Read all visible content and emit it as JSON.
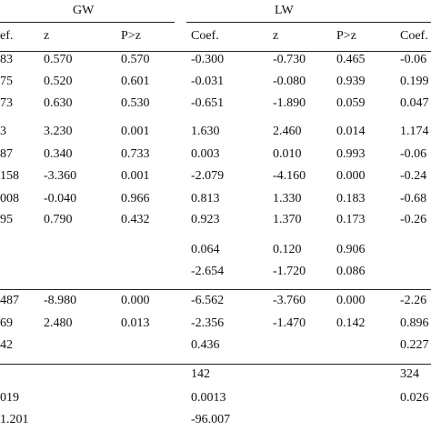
{
  "table": {
    "groups": [
      "GW",
      "LW"
    ],
    "header": [
      "ef.",
      "z",
      "P>z",
      "Coef.",
      "z",
      "P>z",
      "Coef."
    ],
    "rows": [
      [
        "83",
        "0.570",
        "0.570",
        "-0.300",
        "-0.730",
        "0.465",
        "-0.06"
      ],
      [
        "75",
        "0.520",
        "0.601",
        "-0.031",
        "-0.080",
        "0.939",
        "0.199"
      ],
      [
        "73",
        "0.630",
        "0.530",
        "-0.651",
        "-1.890",
        "0.059",
        "0.047"
      ],
      [
        "3",
        "3.230",
        "0.001",
        "1.630",
        "2.460",
        "0.014",
        "1.174"
      ],
      [
        "87",
        "0.340",
        "0.733",
        "0.003",
        "0.010",
        "0.993",
        "-0.06"
      ],
      [
        "158",
        "-3.360",
        "0.001",
        "-2.079",
        "-4.160",
        "0.000",
        "-0.24"
      ],
      [
        "008",
        "-0.040",
        "0.966",
        "0.813",
        "1.330",
        "0.183",
        "-0.68"
      ],
      [
        "95",
        "0.790",
        "0.432",
        "0.923",
        "1.370",
        "0.173",
        "-0.26"
      ],
      [
        null,
        null,
        null,
        "0.064",
        "0.120",
        "0.906",
        null
      ],
      [
        null,
        null,
        null,
        "-2.654",
        "-1.720",
        "0.086",
        null
      ],
      [
        "487",
        "-8.980",
        "0.000",
        "-6.562",
        "-3.760",
        "0.000",
        "-2.26"
      ],
      [
        "69",
        "2.480",
        "0.013",
        "-2.356",
        "-1.470",
        "0.142",
        "0.896"
      ],
      [
        "42",
        null,
        null,
        "0.436",
        null,
        null,
        "0.227"
      ],
      [
        null,
        null,
        null,
        "142",
        null,
        null,
        "324"
      ],
      [
        "019",
        null,
        null,
        "0.0013",
        null,
        null,
        "0.026"
      ],
      [
        "1.201",
        null,
        null,
        "-96.007",
        null,
        null,
        null
      ]
    ]
  }
}
